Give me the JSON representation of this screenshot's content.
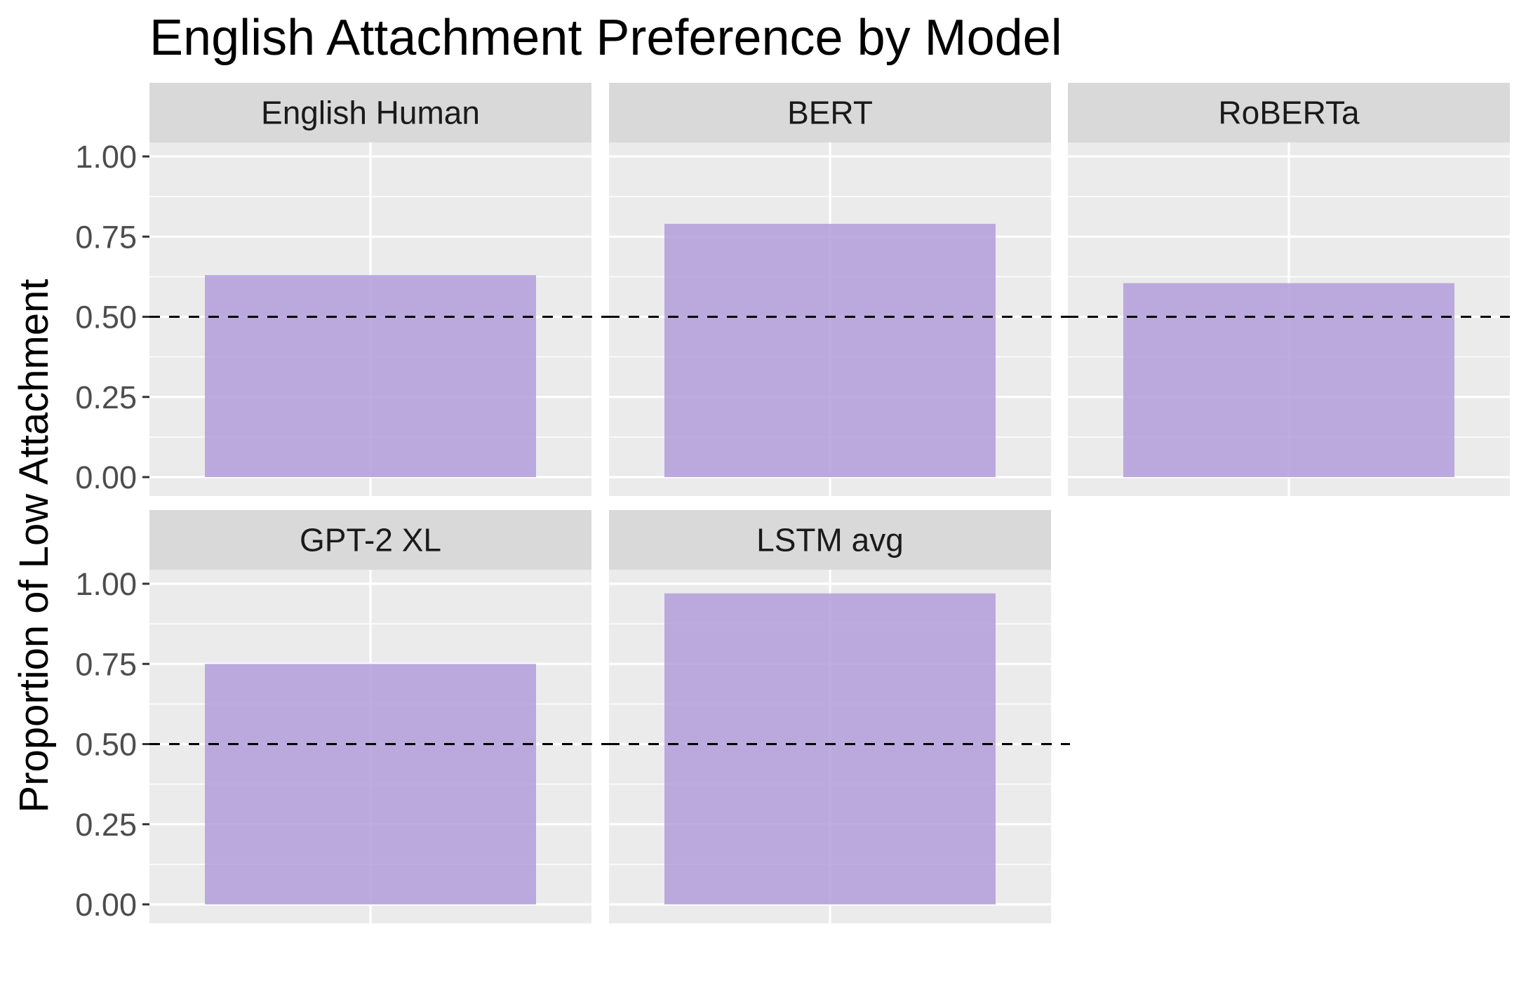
{
  "chart_data": {
    "type": "bar",
    "title": "English Attachment Preference by Model",
    "xlabel": "",
    "ylabel": "Proportion of Low Attachment",
    "ylim": [
      0,
      1
    ],
    "yticks": [
      "0.00",
      "0.25",
      "0.50",
      "0.75",
      "1.00"
    ],
    "reference_line": 0.5,
    "facet_layout": "3 columns, 2 rows",
    "grid": true,
    "legend": "none",
    "panels": [
      {
        "name": "English Human",
        "value": 0.63
      },
      {
        "name": "BERT",
        "value": 0.79
      },
      {
        "name": "RoBERTa",
        "value": 0.605
      },
      {
        "name": "GPT-2 XL",
        "value": 0.75
      },
      {
        "name": "LSTM avg",
        "value": 0.97
      }
    ]
  },
  "colors": {
    "bar": "#b39ddb",
    "panel_background": "#ebebeb",
    "strip_background": "#d9d9d9",
    "grid": "#ffffff",
    "reference_line": "#000000"
  }
}
